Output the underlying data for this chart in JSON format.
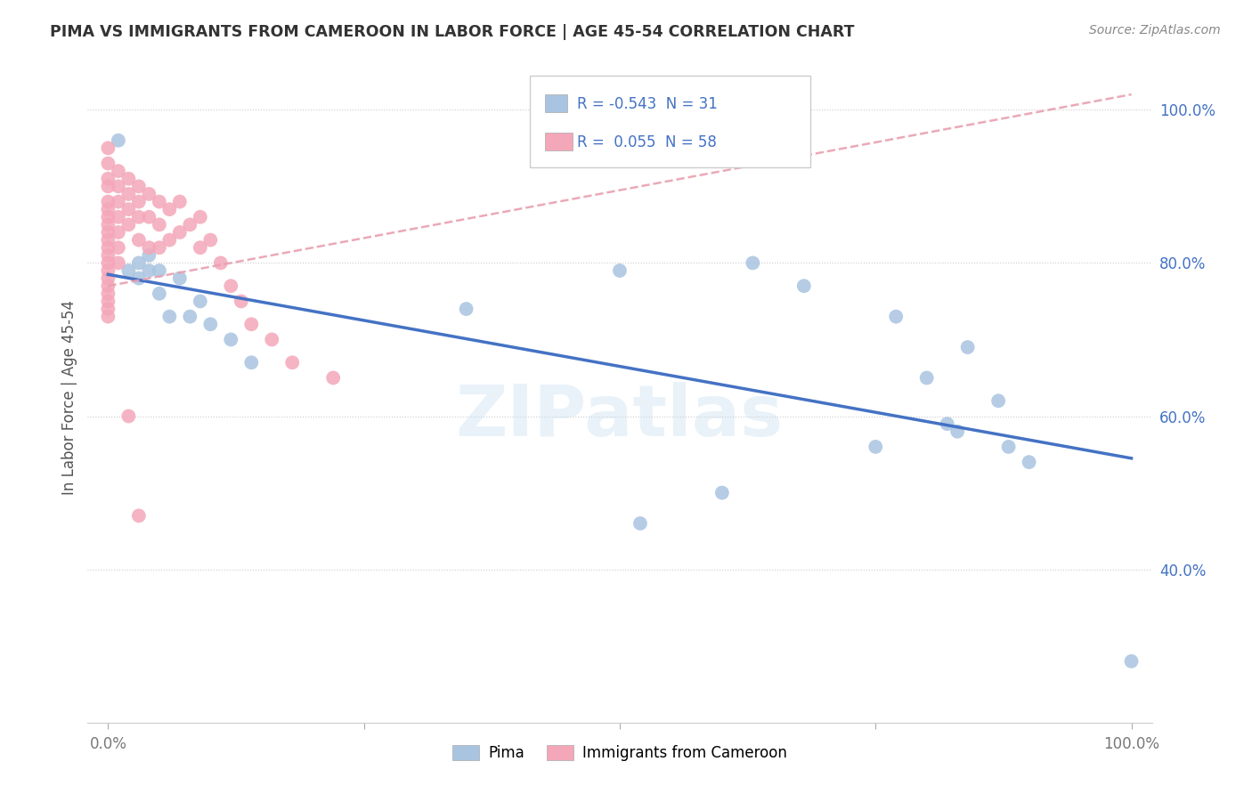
{
  "title": "PIMA VS IMMIGRANTS FROM CAMEROON IN LABOR FORCE | AGE 45-54 CORRELATION CHART",
  "source": "Source: ZipAtlas.com",
  "ylabel": "In Labor Force | Age 45-54",
  "legend_labels": [
    "Pima",
    "Immigrants from Cameroon"
  ],
  "blue_R": -0.543,
  "blue_N": 31,
  "pink_R": 0.055,
  "pink_N": 58,
  "blue_color": "#a8c4e0",
  "pink_color": "#f4a7b9",
  "blue_line_color": "#4472c4",
  "pink_line_color": "#e8a0b0",
  "watermark": "ZIPatlas",
  "xlim": [
    0.0,
    1.0
  ],
  "ylim": [
    0.2,
    1.05
  ],
  "yticks": [
    0.4,
    0.6,
    0.8,
    1.0
  ],
  "ytick_labels": [
    "40.0%",
    "60.0%",
    "80.0%",
    "100.0%"
  ],
  "xtick_labels": [
    "0.0%",
    "",
    "",
    "",
    "100.0%"
  ],
  "blue_x": [
    0.01,
    0.02,
    0.03,
    0.03,
    0.04,
    0.04,
    0.05,
    0.05,
    0.06,
    0.07,
    0.08,
    0.09,
    0.1,
    0.12,
    0.14,
    0.35,
    0.5,
    0.52,
    0.6,
    0.63,
    0.68,
    0.75,
    0.77,
    0.8,
    0.82,
    0.83,
    0.84,
    0.87,
    0.88,
    0.9,
    1.0
  ],
  "blue_y": [
    0.96,
    0.79,
    0.8,
    0.78,
    0.81,
    0.79,
    0.76,
    0.79,
    0.73,
    0.78,
    0.73,
    0.75,
    0.72,
    0.7,
    0.67,
    0.74,
    0.79,
    0.46,
    0.5,
    0.8,
    0.77,
    0.56,
    0.73,
    0.65,
    0.59,
    0.58,
    0.69,
    0.62,
    0.56,
    0.54,
    0.28
  ],
  "pink_x": [
    0.0,
    0.0,
    0.0,
    0.0,
    0.0,
    0.0,
    0.0,
    0.0,
    0.0,
    0.0,
    0.0,
    0.0,
    0.0,
    0.0,
    0.0,
    0.0,
    0.0,
    0.0,
    0.0,
    0.0,
    0.01,
    0.01,
    0.01,
    0.01,
    0.01,
    0.01,
    0.01,
    0.02,
    0.02,
    0.02,
    0.02,
    0.02,
    0.03,
    0.03,
    0.03,
    0.03,
    0.03,
    0.04,
    0.04,
    0.04,
    0.05,
    0.05,
    0.05,
    0.06,
    0.06,
    0.07,
    0.07,
    0.08,
    0.09,
    0.09,
    0.1,
    0.11,
    0.12,
    0.13,
    0.14,
    0.16,
    0.18,
    0.22
  ],
  "pink_y": [
    0.95,
    0.93,
    0.91,
    0.9,
    0.88,
    0.87,
    0.86,
    0.85,
    0.84,
    0.83,
    0.82,
    0.81,
    0.8,
    0.79,
    0.78,
    0.77,
    0.76,
    0.75,
    0.74,
    0.73,
    0.92,
    0.9,
    0.88,
    0.86,
    0.84,
    0.82,
    0.8,
    0.91,
    0.89,
    0.87,
    0.85,
    0.6,
    0.9,
    0.88,
    0.86,
    0.83,
    0.47,
    0.89,
    0.86,
    0.82,
    0.88,
    0.85,
    0.82,
    0.87,
    0.83,
    0.88,
    0.84,
    0.85,
    0.86,
    0.82,
    0.83,
    0.8,
    0.77,
    0.75,
    0.72,
    0.7,
    0.67,
    0.65
  ]
}
